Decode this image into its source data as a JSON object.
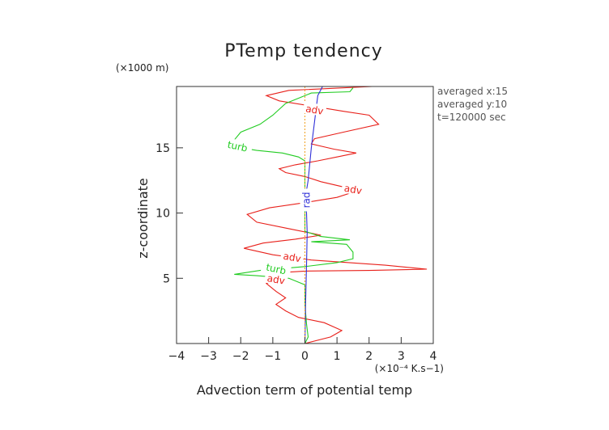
{
  "chart_data": {
    "type": "line",
    "title": "PTemp tendency",
    "xlabel": "Advection term of potential temp",
    "ylabel": "z-coordinate",
    "x_scale_label": "(×10⁻⁴ K.s−1)",
    "y_scale_label": "(×1000 m)",
    "xlim": [
      -4,
      4
    ],
    "ylim": [
      0,
      19.7
    ],
    "x_ticks": [
      -4,
      -3,
      -2,
      -1,
      0,
      1,
      2,
      3,
      4
    ],
    "y_ticks": [
      5,
      10,
      15
    ],
    "annotations": [
      "averaged  x:15",
      "averaged  y:10",
      "t=120000 sec"
    ],
    "series": [
      {
        "name": "adv",
        "color": "#e8201a",
        "labels": [
          {
            "text": "adv",
            "x": 0.3,
            "y": 17.9
          },
          {
            "text": "adv",
            "x": 1.5,
            "y": 11.8
          },
          {
            "text": "adv",
            "x": -0.4,
            "y": 6.6
          },
          {
            "text": "adv",
            "x": -0.9,
            "y": 4.9
          }
        ],
        "points": [
          [
            0.0,
            0.0
          ],
          [
            0.8,
            0.5
          ],
          [
            1.15,
            1.0
          ],
          [
            0.6,
            1.6
          ],
          [
            -0.2,
            2.0
          ],
          [
            -0.6,
            2.5
          ],
          [
            -0.9,
            3.0
          ],
          [
            -0.6,
            3.5
          ],
          [
            -0.9,
            4.0
          ],
          [
            -1.2,
            4.6
          ],
          [
            -0.7,
            5.0
          ],
          [
            -1.0,
            5.4
          ],
          [
            0.0,
            5.55
          ],
          [
            2.0,
            5.6
          ],
          [
            3.8,
            5.7
          ],
          [
            2.5,
            6.0
          ],
          [
            0.2,
            6.4
          ],
          [
            -1.0,
            6.8
          ],
          [
            -1.9,
            7.3
          ],
          [
            -1.3,
            7.7
          ],
          [
            -0.3,
            8.0
          ],
          [
            0.5,
            8.3
          ],
          [
            -0.5,
            8.8
          ],
          [
            -1.5,
            9.3
          ],
          [
            -1.8,
            9.9
          ],
          [
            -1.1,
            10.4
          ],
          [
            0.0,
            10.8
          ],
          [
            1.0,
            11.2
          ],
          [
            1.5,
            11.6
          ],
          [
            1.2,
            12.0
          ],
          [
            0.5,
            12.4
          ],
          [
            0.0,
            12.8
          ],
          [
            -0.6,
            13.1
          ],
          [
            -0.8,
            13.4
          ],
          [
            -0.3,
            13.7
          ],
          [
            0.4,
            14.0
          ],
          [
            1.0,
            14.3
          ],
          [
            1.6,
            14.6
          ],
          [
            0.9,
            14.9
          ],
          [
            0.2,
            15.3
          ],
          [
            0.3,
            15.7
          ],
          [
            1.2,
            16.2
          ],
          [
            2.3,
            16.8
          ],
          [
            2.0,
            17.5
          ],
          [
            1.2,
            17.8
          ],
          [
            0.2,
            18.2
          ],
          [
            -0.8,
            18.6
          ],
          [
            -1.2,
            19.0
          ],
          [
            -0.5,
            19.4
          ],
          [
            2.1,
            19.7
          ]
        ]
      },
      {
        "name": "turb",
        "color": "#22cc22",
        "labels": [
          {
            "text": "turb",
            "x": -2.1,
            "y": 15.1
          },
          {
            "text": "turb",
            "x": -0.9,
            "y": 5.7
          }
        ],
        "points": [
          [
            0.0,
            0.0
          ],
          [
            0.1,
            0.5
          ],
          [
            0.05,
            1.5
          ],
          [
            0.0,
            3.0
          ],
          [
            0.0,
            4.5
          ],
          [
            -0.5,
            5.0
          ],
          [
            -1.5,
            5.2
          ],
          [
            -2.2,
            5.3
          ],
          [
            -1.4,
            5.6
          ],
          [
            0.0,
            5.9
          ],
          [
            1.0,
            6.2
          ],
          [
            1.5,
            6.5
          ],
          [
            1.5,
            7.0
          ],
          [
            1.3,
            7.6
          ],
          [
            0.2,
            7.8
          ],
          [
            1.4,
            7.95
          ],
          [
            0.5,
            8.2
          ],
          [
            0.0,
            8.6
          ],
          [
            0.0,
            10.0
          ],
          [
            0.0,
            12.0
          ],
          [
            0.0,
            14.0
          ],
          [
            -0.2,
            14.3
          ],
          [
            -0.7,
            14.6
          ],
          [
            -1.5,
            14.8
          ],
          [
            -2.0,
            15.0
          ],
          [
            -2.2,
            15.6
          ],
          [
            -2.0,
            16.2
          ],
          [
            -1.4,
            16.8
          ],
          [
            -1.0,
            17.5
          ],
          [
            -0.6,
            18.4
          ],
          [
            0.2,
            19.2
          ],
          [
            1.4,
            19.3
          ],
          [
            1.5,
            19.6
          ]
        ]
      },
      {
        "name": "rad",
        "color": "#3030d8",
        "labels": [
          {
            "text": "rad",
            "x": 0.05,
            "y": 11.0
          }
        ],
        "points": [
          [
            0.0,
            0.0
          ],
          [
            0.02,
            3.0
          ],
          [
            0.05,
            6.0
          ],
          [
            0.07,
            8.5
          ],
          [
            0.05,
            10.0
          ],
          [
            0.0,
            11.0
          ],
          [
            0.1,
            12.5
          ],
          [
            0.2,
            15.0
          ],
          [
            0.3,
            17.0
          ],
          [
            0.4,
            19.0
          ],
          [
            0.55,
            19.7
          ]
        ]
      },
      {
        "name": "",
        "color": "#f0a020",
        "labels": [],
        "points": [
          [
            0.0,
            0.0
          ],
          [
            0.0,
            5.0
          ],
          [
            0.0,
            10.0
          ],
          [
            0.0,
            15.0
          ],
          [
            0.0,
            19.7
          ]
        ]
      }
    ]
  }
}
